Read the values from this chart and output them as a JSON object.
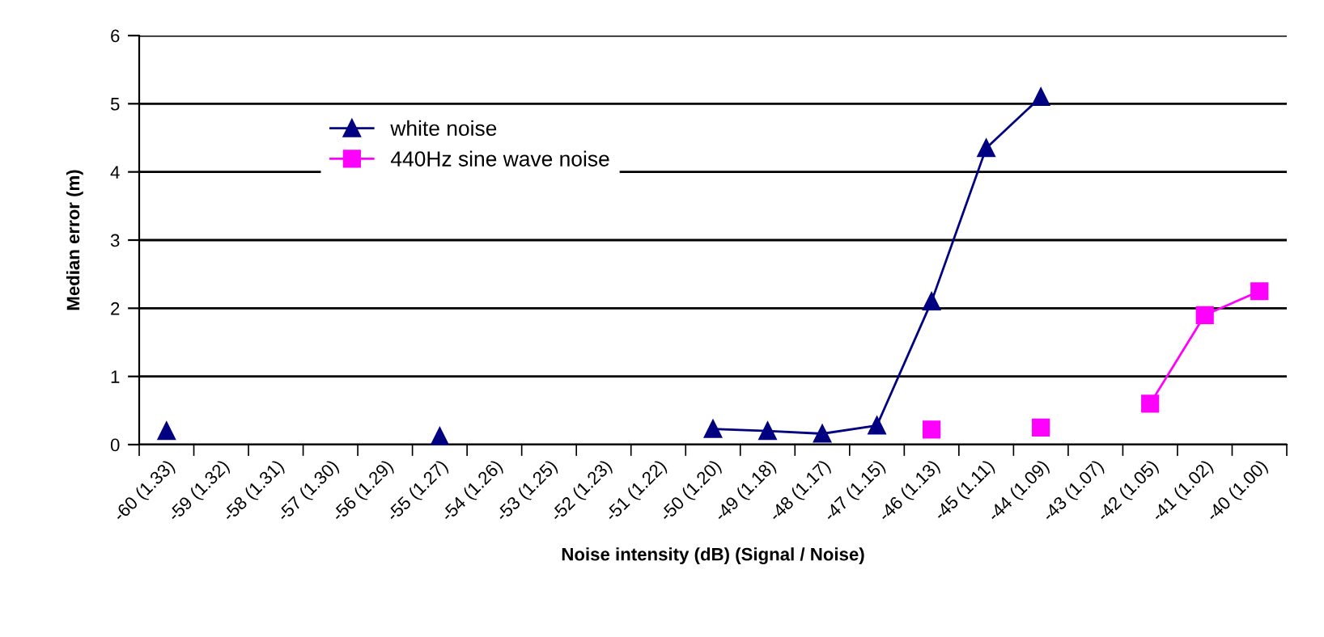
{
  "chart_data": {
    "type": "line",
    "xlabel": "Noise intensity (dB) (Signal / Noise)",
    "ylabel": "Median error (m)",
    "categories": [
      "-60 (1.33)",
      "-59 (1.32)",
      "-58 (1.31)",
      "-57 (1.30)",
      "-56 (1.29)",
      "-55 (1.27)",
      "-54 (1.26)",
      "-53 (1.25)",
      "-52 (1.23)",
      "-51 (1.22)",
      "-50 (1.20)",
      "-49 (1.18)",
      "-48 (1.17)",
      "-47 (1.15)",
      "-46 (1.13)",
      "-45 (1.11)",
      "-44 (1.09)",
      "-43 (1.07)",
      "-42 (1.05)",
      "-41 (1.02)",
      "-40 (1.00)"
    ],
    "series": [
      {
        "name": "white noise",
        "color": "#000080",
        "marker": "triangle",
        "values": [
          0.2,
          null,
          null,
          null,
          null,
          0.12,
          null,
          null,
          null,
          null,
          0.23,
          0.2,
          0.16,
          0.28,
          2.1,
          4.35,
          5.1,
          null,
          null,
          null,
          null
        ]
      },
      {
        "name": "440Hz sine wave noise",
        "color": "#ff00ff",
        "marker": "square",
        "values": [
          null,
          null,
          null,
          null,
          null,
          null,
          null,
          null,
          null,
          null,
          null,
          null,
          null,
          null,
          0.22,
          null,
          0.25,
          null,
          0.6,
          1.9,
          2.25
        ]
      }
    ],
    "ylim": [
      0,
      6
    ],
    "yticks": [
      0,
      1,
      2,
      3,
      4,
      5,
      6
    ],
    "grid": "y",
    "legend": "top left",
    "line_style": "solid"
  }
}
